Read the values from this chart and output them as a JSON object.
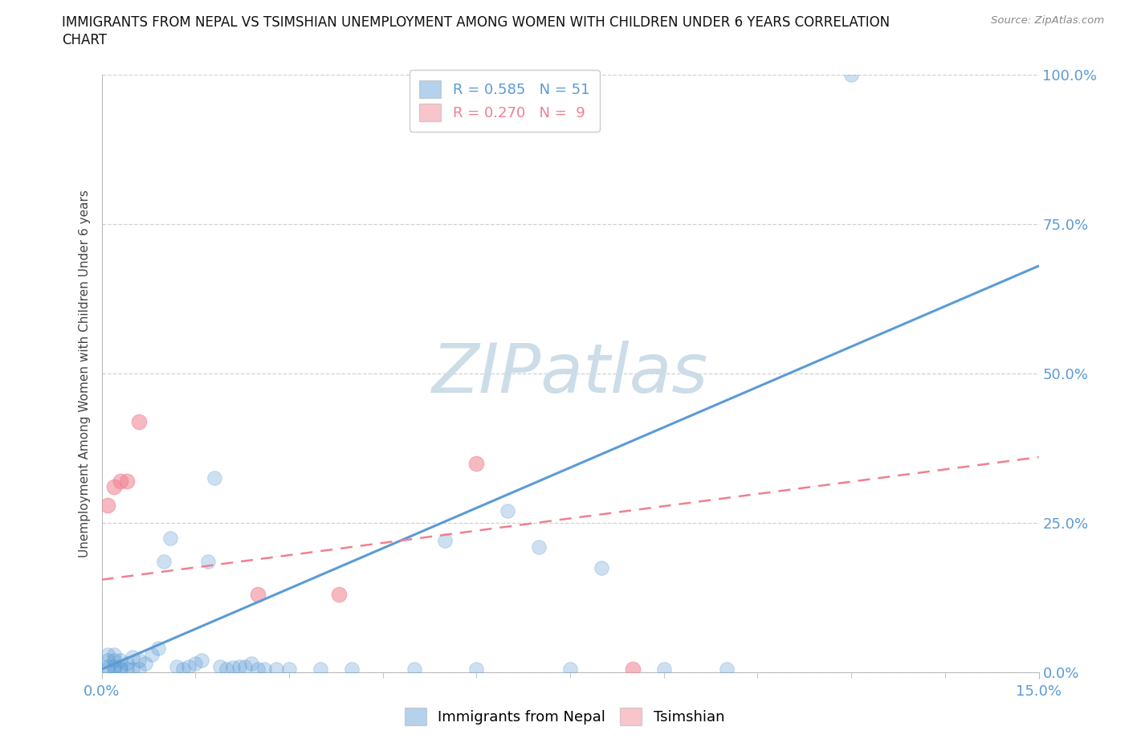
{
  "title_line1": "IMMIGRANTS FROM NEPAL VS TSIMSHIAN UNEMPLOYMENT AMONG WOMEN WITH CHILDREN UNDER 6 YEARS CORRELATION",
  "title_line2": "CHART",
  "source": "Source: ZipAtlas.com",
  "ylabel": "Unemployment Among Women with Children Under 6 years",
  "xlim": [
    0.0,
    0.15
  ],
  "ylim": [
    0.0,
    1.0
  ],
  "yticks": [
    0.0,
    0.25,
    0.5,
    0.75,
    1.0
  ],
  "ytick_labels": [
    "0.0%",
    "25.0%",
    "50.0%",
    "75.0%",
    "100.0%"
  ],
  "xticks": [
    0.0,
    0.15
  ],
  "xtick_labels": [
    "0.0%",
    "15.0%"
  ],
  "watermark": "ZIPatlas",
  "watermark_color": "#ccdde8",
  "background_color": "#ffffff",
  "grid_color": "#cccccc",
  "legend_R1": "R = 0.585",
  "legend_N1": "N = 51",
  "legend_R2": "R = 0.270",
  "legend_N2": "N =  9",
  "blue_color": "#5b9bd5",
  "pink_color": "#f08090",
  "axis_color": "#5b9bd5",
  "nepal_scatter_x": [
    0.001,
    0.001,
    0.001,
    0.001,
    0.002,
    0.002,
    0.002,
    0.002,
    0.003,
    0.003,
    0.003,
    0.004,
    0.004,
    0.005,
    0.005,
    0.006,
    0.006,
    0.007,
    0.008,
    0.009,
    0.01,
    0.011,
    0.012,
    0.013,
    0.014,
    0.015,
    0.016,
    0.017,
    0.018,
    0.019,
    0.02,
    0.021,
    0.022,
    0.023,
    0.024,
    0.025,
    0.026,
    0.028,
    0.03,
    0.035,
    0.04,
    0.05,
    0.055,
    0.06,
    0.065,
    0.07,
    0.075,
    0.08,
    0.09,
    0.1,
    0.12
  ],
  "nepal_scatter_y": [
    0.005,
    0.01,
    0.02,
    0.03,
    0.005,
    0.01,
    0.02,
    0.03,
    0.005,
    0.01,
    0.02,
    0.005,
    0.015,
    0.005,
    0.025,
    0.005,
    0.02,
    0.015,
    0.03,
    0.04,
    0.185,
    0.225,
    0.01,
    0.005,
    0.01,
    0.015,
    0.02,
    0.185,
    0.325,
    0.01,
    0.005,
    0.008,
    0.01,
    0.01,
    0.015,
    0.005,
    0.005,
    0.005,
    0.005,
    0.005,
    0.005,
    0.005,
    0.22,
    0.005,
    0.27,
    0.21,
    0.005,
    0.175,
    0.005,
    0.005,
    1.0
  ],
  "tsimshian_scatter_x": [
    0.001,
    0.002,
    0.003,
    0.004,
    0.006,
    0.025,
    0.038,
    0.06,
    0.085
  ],
  "tsimshian_scatter_y": [
    0.28,
    0.31,
    0.32,
    0.32,
    0.42,
    0.13,
    0.13,
    0.35,
    0.005
  ],
  "nepal_line_x": [
    0.0,
    0.15
  ],
  "nepal_line_y": [
    0.005,
    0.68
  ],
  "tsimshian_line_x": [
    0.0,
    0.15
  ],
  "tsimshian_line_y": [
    0.155,
    0.36
  ]
}
